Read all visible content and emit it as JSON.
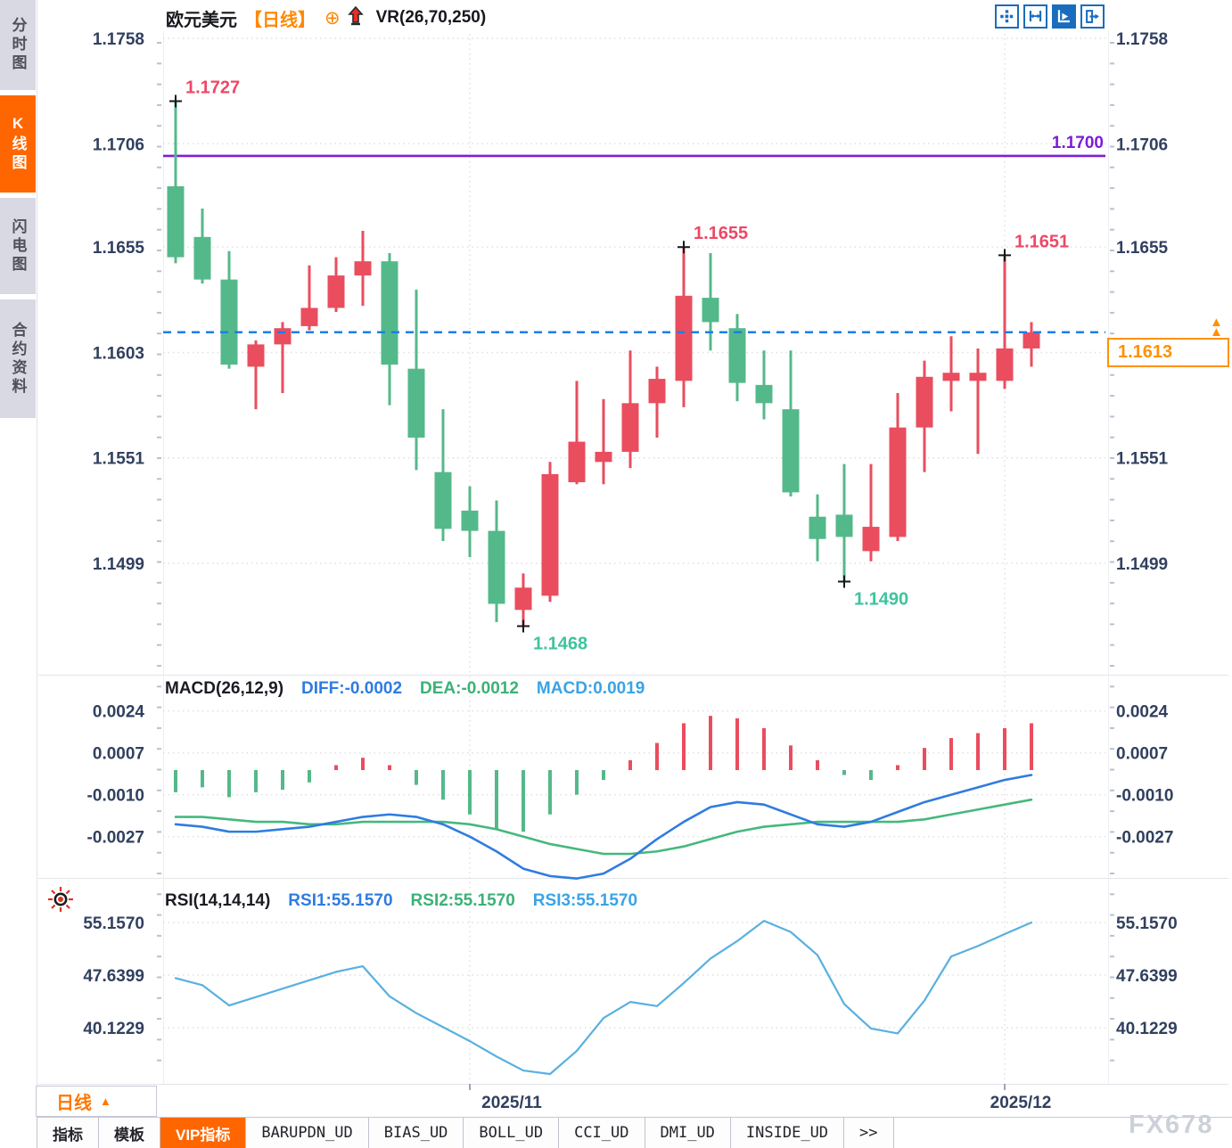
{
  "header": {
    "symbol": "欧元美元",
    "period_tag": "【日线】",
    "plus_icon": "⊕",
    "indicator_label": "VR(26,70,250)"
  },
  "sidebar": {
    "items": [
      {
        "label": "分时图",
        "active": false
      },
      {
        "label": "K线图",
        "active": true
      },
      {
        "label": "闪电图",
        "active": false
      },
      {
        "label": "合约资料",
        "active": false
      }
    ]
  },
  "toolbar": {
    "buttons": [
      {
        "name": "crosshair-move-icon",
        "active": false
      },
      {
        "name": "axis-range-icon",
        "active": false
      },
      {
        "name": "axis-play-icon",
        "active": true
      },
      {
        "name": "export-right-icon",
        "active": false
      }
    ]
  },
  "colors": {
    "up_candle": "#ea4d5e",
    "down_candle": "#54b98a",
    "resistance_line": "#7c1ed9",
    "last_price_line": "#1f7de8",
    "accent_orange": "#ff6600",
    "axis_text": "#31405f",
    "high_label": "#ed4866",
    "low_label": "#3ec39e",
    "diff_line": "#2f7ce0",
    "dea_line": "#45b87e",
    "rsi_line": "#59b0e0"
  },
  "chart_data": [
    {
      "type": "candlestick",
      "symbol": "欧元美元",
      "period": "日线",
      "y_ticks_left": [
        1.1758,
        1.1706,
        1.1655,
        1.1603,
        1.1551,
        1.1499
      ],
      "y_ticks_right": [
        1.1758,
        1.1706,
        1.1655,
        1.1551,
        1.1499
      ],
      "ylim": [
        1.1758,
        1.1499
      ],
      "x_ticks": [
        {
          "label": "2025/11",
          "index": 11
        },
        {
          "label": "2025/12",
          "index": 31
        }
      ],
      "candles_ohlc": [
        [
          1.1685,
          1.1727,
          1.1647,
          1.165
        ],
        [
          1.166,
          1.1674,
          1.1637,
          1.1639
        ],
        [
          1.1639,
          1.1653,
          1.1595,
          1.1597
        ],
        [
          1.1596,
          1.1609,
          1.1575,
          1.1607
        ],
        [
          1.1607,
          1.1618,
          1.1583,
          1.1615
        ],
        [
          1.1616,
          1.1646,
          1.1614,
          1.1625
        ],
        [
          1.1625,
          1.165,
          1.1623,
          1.1641
        ],
        [
          1.1641,
          1.1663,
          1.1626,
          1.1648
        ],
        [
          1.1648,
          1.1652,
          1.1577,
          1.1597
        ],
        [
          1.1595,
          1.1634,
          1.1545,
          1.1561
        ],
        [
          1.1544,
          1.1575,
          1.151,
          1.1516
        ],
        [
          1.1525,
          1.1537,
          1.1502,
          1.1515
        ],
        [
          1.1515,
          1.153,
          1.147,
          1.1479
        ],
        [
          1.1476,
          1.1494,
          1.1468,
          1.1487
        ],
        [
          1.1483,
          1.1549,
          1.148,
          1.1543
        ],
        [
          1.1539,
          1.1589,
          1.1538,
          1.1559
        ],
        [
          1.1549,
          1.158,
          1.1538,
          1.1554
        ],
        [
          1.1554,
          1.1604,
          1.1546,
          1.1578
        ],
        [
          1.1578,
          1.1596,
          1.1561,
          1.159
        ],
        [
          1.1589,
          1.1655,
          1.1576,
          1.1631
        ],
        [
          1.163,
          1.1652,
          1.1604,
          1.1618
        ],
        [
          1.1615,
          1.1622,
          1.1579,
          1.1588
        ],
        [
          1.1587,
          1.1604,
          1.157,
          1.1578
        ],
        [
          1.1575,
          1.1604,
          1.1532,
          1.1534
        ],
        [
          1.1522,
          1.1533,
          1.15,
          1.1511
        ],
        [
          1.1523,
          1.1548,
          1.149,
          1.1512
        ],
        [
          1.1505,
          1.1548,
          1.15,
          1.1517
        ],
        [
          1.1512,
          1.1583,
          1.151,
          1.1566
        ],
        [
          1.1566,
          1.1599,
          1.1544,
          1.1591
        ],
        [
          1.1589,
          1.1611,
          1.1574,
          1.1593
        ],
        [
          1.1589,
          1.1605,
          1.1553,
          1.1593
        ],
        [
          1.1589,
          1.1651,
          1.1585,
          1.1605
        ],
        [
          1.1605,
          1.1618,
          1.1596,
          1.1613
        ]
      ],
      "annotations": [
        {
          "index": 0,
          "price": 1.1727,
          "text": "1.1727",
          "kind": "high"
        },
        {
          "index": 19,
          "price": 1.1655,
          "text": "1.1655",
          "kind": "high"
        },
        {
          "index": 31,
          "price": 1.1651,
          "text": "1.1651",
          "kind": "high"
        },
        {
          "index": 13,
          "price": 1.1468,
          "text": "1.1468",
          "kind": "low"
        },
        {
          "index": 25,
          "price": 1.149,
          "text": "1.1490",
          "kind": "low"
        }
      ],
      "resistance_line": {
        "price": 1.17,
        "label": "1.1700"
      },
      "last_price": {
        "price": 1.1613,
        "label": "1.1613"
      }
    },
    {
      "type": "macd",
      "title": "MACD(26,12,9)",
      "legend": {
        "diff_label": "DIFF:-0.0002",
        "dea_label": "DEA:-0.0012",
        "macd_label": "MACD:0.0019"
      },
      "y_ticks": [
        0.0024,
        0.0007,
        -0.001,
        -0.0027
      ],
      "histogram": [
        -0.0009,
        -0.0007,
        -0.0011,
        -0.0009,
        -0.0008,
        -0.0005,
        0.0002,
        0.0005,
        0.0002,
        -0.0006,
        -0.0012,
        -0.0018,
        -0.0024,
        -0.0025,
        -0.0018,
        -0.001,
        -0.0004,
        0.0004,
        0.0011,
        0.0019,
        0.0022,
        0.0021,
        0.0017,
        0.001,
        0.0004,
        -0.0002,
        -0.0004,
        0.0002,
        0.0009,
        0.0013,
        0.0015,
        0.0017,
        0.0019
      ],
      "diff": [
        -0.0022,
        -0.0023,
        -0.0025,
        -0.0025,
        -0.0024,
        -0.0023,
        -0.0021,
        -0.0019,
        -0.0018,
        -0.0019,
        -0.0022,
        -0.0027,
        -0.0033,
        -0.004,
        -0.0043,
        -0.0044,
        -0.0042,
        -0.0036,
        -0.0028,
        -0.0021,
        -0.0015,
        -0.0013,
        -0.0014,
        -0.0018,
        -0.0022,
        -0.0023,
        -0.0021,
        -0.0017,
        -0.0013,
        -0.001,
        -0.0007,
        -0.0004,
        -0.0002
      ],
      "dea": [
        -0.0019,
        -0.0019,
        -0.002,
        -0.0021,
        -0.0021,
        -0.0022,
        -0.0022,
        -0.0021,
        -0.0021,
        -0.0021,
        -0.0021,
        -0.0022,
        -0.0024,
        -0.0027,
        -0.003,
        -0.0032,
        -0.0034,
        -0.0034,
        -0.0033,
        -0.0031,
        -0.0028,
        -0.0025,
        -0.0023,
        -0.0022,
        -0.0021,
        -0.0021,
        -0.0021,
        -0.0021,
        -0.002,
        -0.0018,
        -0.0016,
        -0.0014,
        -0.0012
      ]
    },
    {
      "type": "line",
      "title": "RSI(14,14,14)",
      "legend": {
        "rsi1": "RSI1:55.1570",
        "rsi2": "RSI2:55.1570",
        "rsi3": "RSI3:55.1570"
      },
      "y_ticks": [
        55.157,
        47.6399,
        40.1229
      ],
      "values": [
        47.2,
        46.2,
        43.3,
        44.5,
        45.7,
        46.9,
        48.1,
        48.9,
        44.6,
        42.2,
        40.2,
        38.2,
        36.0,
        34.0,
        33.5,
        36.8,
        41.5,
        43.8,
        43.2,
        46.5,
        50.0,
        52.5,
        55.4,
        53.8,
        50.5,
        43.5,
        40.0,
        39.3,
        44.0,
        50.3,
        51.8,
        53.5,
        55.157
      ]
    }
  ],
  "footer": {
    "period_selector": {
      "label": "日线",
      "arrow": "▲"
    },
    "tabs": [
      {
        "label": "指标",
        "active": false,
        "mono": false
      },
      {
        "label": "模板",
        "active": false,
        "mono": false
      },
      {
        "label": "VIP指标",
        "active": true,
        "mono": false
      },
      {
        "label": "BARUPDN_UD",
        "active": false,
        "mono": true
      },
      {
        "label": "BIAS_UD",
        "active": false,
        "mono": true
      },
      {
        "label": "BOLL_UD",
        "active": false,
        "mono": true
      },
      {
        "label": "CCI_UD",
        "active": false,
        "mono": true
      },
      {
        "label": "DMI_UD",
        "active": false,
        "mono": true
      },
      {
        "label": "INSIDE_UD",
        "active": false,
        "mono": true
      },
      {
        "label": "&gt;&gt;",
        "text": ">>",
        "active": false,
        "mono": true
      }
    ],
    "watermark": "FX678"
  }
}
